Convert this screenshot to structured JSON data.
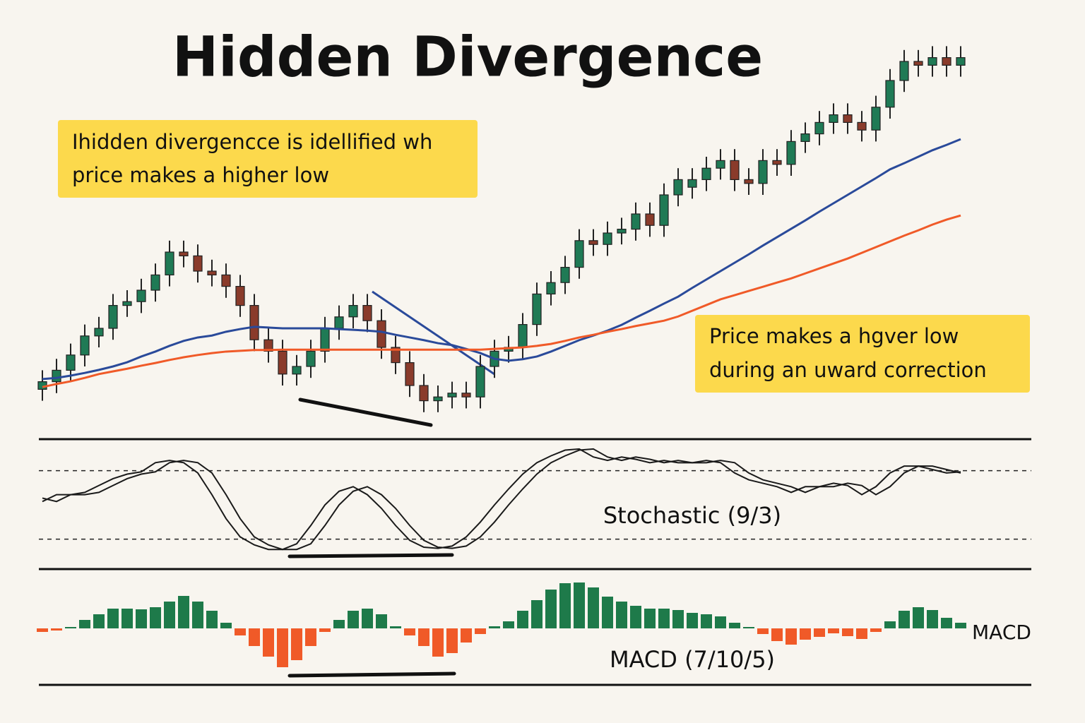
{
  "chart_data": [
    {
      "type": "candlestick",
      "title": "Hidden Divergence",
      "annotations": [
        [
          "Ihidden divergencce is idellified wh",
          "price makes a higher low"
        ],
        [
          "Price makes a hgver low",
          "during an uward correction"
        ]
      ],
      "ylim": [
        0,
        100
      ],
      "up_color": "#1f7a55",
      "down_color": "#8a3b2b",
      "open": [
        9,
        11,
        14,
        18,
        23,
        25,
        31,
        32,
        35,
        39,
        45,
        44,
        40,
        39,
        36,
        31,
        22,
        19,
        13,
        15,
        19,
        25,
        28,
        31,
        27,
        20,
        16,
        10,
        6,
        7,
        8,
        7,
        15,
        19,
        20,
        26,
        34,
        37,
        41,
        48,
        47,
        50,
        51,
        55,
        52,
        60,
        62,
        64,
        67,
        69,
        64,
        63,
        69,
        68,
        74,
        76,
        79,
        81,
        79,
        77,
        83,
        90,
        95,
        94,
        96,
        94
      ],
      "high": [
        14,
        17,
        21,
        26,
        28,
        34,
        35,
        38,
        42,
        48,
        48,
        47,
        43,
        42,
        39,
        34,
        25,
        22,
        18,
        22,
        28,
        31,
        34,
        34,
        30,
        23,
        19,
        13,
        10,
        11,
        11,
        18,
        22,
        23,
        29,
        37,
        40,
        44,
        51,
        51,
        53,
        54,
        58,
        58,
        63,
        67,
        67,
        70,
        72,
        72,
        67,
        72,
        72,
        77,
        79,
        82,
        84,
        84,
        82,
        86,
        93,
        98,
        98,
        99,
        99,
        99
      ],
      "low": [
        6,
        8,
        11,
        15,
        20,
        22,
        28,
        29,
        32,
        36,
        41,
        37,
        36,
        33,
        28,
        19,
        16,
        10,
        10,
        12,
        16,
        22,
        25,
        24,
        17,
        13,
        7,
        3,
        3,
        4,
        4,
        4,
        12,
        16,
        17,
        23,
        31,
        34,
        38,
        44,
        44,
        47,
        48,
        49,
        49,
        57,
        59,
        61,
        64,
        61,
        60,
        60,
        65,
        65,
        71,
        73,
        76,
        76,
        74,
        74,
        80,
        87,
        91,
        91,
        91,
        91
      ],
      "close": [
        11,
        14,
        18,
        23,
        25,
        31,
        32,
        35,
        39,
        45,
        44,
        40,
        39,
        36,
        31,
        22,
        19,
        13,
        15,
        19,
        25,
        28,
        31,
        27,
        20,
        16,
        10,
        6,
        7,
        8,
        7,
        15,
        19,
        20,
        26,
        34,
        37,
        41,
        48,
        47,
        50,
        51,
        55,
        52,
        60,
        64,
        64,
        67,
        69,
        64,
        63,
        69,
        68,
        74,
        76,
        79,
        81,
        79,
        77,
        83,
        90,
        95,
        94,
        96,
        94,
        96
      ],
      "series": [
        {
          "color": "#2a4a9a",
          "values": [
            11.7,
            12.0,
            12.6,
            13.3,
            14.1,
            15.0,
            16.1,
            17.6,
            18.9,
            20.4,
            21.7,
            22.6,
            23.1,
            24.1,
            24.8,
            25.4,
            25.2,
            25.0,
            25.0,
            25.0,
            25.0,
            24.8,
            24.6,
            24.4,
            24.1,
            23.3,
            22.6,
            21.9,
            21.1,
            20.6,
            19.6,
            18.5,
            17.0,
            16.5,
            16.9,
            17.6,
            18.9,
            20.4,
            21.9,
            23.1,
            24.4,
            25.9,
            27.8,
            29.6,
            31.5,
            33.3,
            35.6,
            37.8,
            40.0,
            42.2,
            44.4,
            46.7,
            48.9,
            51.1,
            53.3,
            55.6,
            57.8,
            60.0,
            62.2,
            64.4,
            66.7,
            68.3,
            70.0,
            71.7,
            73.1,
            74.6
          ]
        },
        {
          "color": "#f05a28",
          "values": [
            9.6,
            10.4,
            11.1,
            12.0,
            13.0,
            13.7,
            14.4,
            15.2,
            15.9,
            16.7,
            17.4,
            18.0,
            18.5,
            18.9,
            19.1,
            19.3,
            19.3,
            19.4,
            19.4,
            19.4,
            19.4,
            19.4,
            19.4,
            19.4,
            19.4,
            19.4,
            19.4,
            19.4,
            19.4,
            19.4,
            19.4,
            19.4,
            19.6,
            19.8,
            20.0,
            20.4,
            20.9,
            21.7,
            22.6,
            23.3,
            24.1,
            24.8,
            25.6,
            26.3,
            27.0,
            28.1,
            29.6,
            31.1,
            32.6,
            33.7,
            34.8,
            35.9,
            37.0,
            38.1,
            39.4,
            40.7,
            42.0,
            43.3,
            44.8,
            46.3,
            47.8,
            49.3,
            50.7,
            52.2,
            53.5,
            54.6
          ]
        }
      ]
    },
    {
      "type": "line",
      "title": "Stochastic (9/3)",
      "ylim": [
        0,
        100
      ],
      "levels": [
        20,
        80
      ],
      "series": [
        {
          "color": "#1a1a1a",
          "values": [
            53,
            59,
            59,
            61,
            67,
            73,
            77,
            79,
            87,
            89,
            87,
            78,
            59,
            38,
            22,
            15,
            11,
            11,
            16,
            32,
            50,
            62,
            66,
            59,
            47,
            32,
            19,
            13,
            12,
            14,
            22,
            35,
            50,
            64,
            77,
            87,
            93,
            98,
            99,
            92,
            89,
            92,
            90,
            87,
            89,
            87,
            87,
            89,
            87,
            78,
            72,
            69,
            66,
            61,
            66,
            66,
            69,
            67,
            59,
            66,
            78,
            84,
            84,
            81,
            78,
            79
          ]
        },
        {
          "color": "#1a1a1a",
          "values": [
            56,
            53,
            59,
            59,
            61,
            67,
            73,
            77,
            79,
            87,
            89,
            87,
            78,
            59,
            38,
            22,
            15,
            11,
            11,
            16,
            32,
            50,
            62,
            66,
            59,
            47,
            32,
            19,
            13,
            12,
            14,
            22,
            35,
            50,
            64,
            77,
            87,
            93,
            98,
            99,
            92,
            89,
            92,
            90,
            87,
            89,
            87,
            87,
            89,
            87,
            78,
            72,
            69,
            66,
            61,
            66,
            66,
            69,
            67,
            59,
            66,
            78,
            84,
            84,
            81,
            78
          ]
        }
      ]
    },
    {
      "type": "bar",
      "title": "MACD (7/10/5)",
      "label": "MACD",
      "ylim": [
        -7,
        7
      ],
      "positive_color": "#1e7a4a",
      "negative_color": "#f05a28",
      "values": [
        -0.5,
        -0.3,
        0.2,
        1.2,
        2.0,
        2.8,
        2.8,
        2.7,
        3.0,
        3.8,
        4.6,
        3.8,
        2.5,
        0.8,
        -1.0,
        -2.5,
        -4.0,
        -5.5,
        -4.5,
        -2.5,
        -0.5,
        1.2,
        2.5,
        2.8,
        2.0,
        0.3,
        -1.0,
        -2.5,
        -4.0,
        -3.5,
        -2.0,
        -0.8,
        0.3,
        1.0,
        2.5,
        4.0,
        5.5,
        6.4,
        6.5,
        5.8,
        4.5,
        3.8,
        3.2,
        2.8,
        2.8,
        2.6,
        2.2,
        2.0,
        1.7,
        0.8,
        0.2,
        -0.8,
        -1.8,
        -2.3,
        -1.6,
        -1.2,
        -0.7,
        -1.1,
        -1.5,
        -0.5,
        1.0,
        2.5,
        3.0,
        2.6,
        1.5,
        0.8
      ]
    }
  ]
}
